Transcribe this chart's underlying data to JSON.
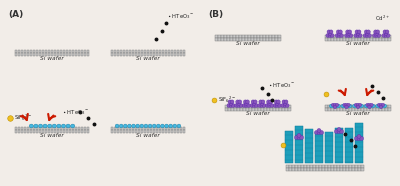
{
  "fig_width": 4.0,
  "fig_height": 1.86,
  "dpi": 100,
  "bg_color": "#f2ede8",
  "label_A": "(A)",
  "label_B": "(B)",
  "si_wafer_label": "Si wafer",
  "gray_color": "#aaaaaa",
  "blue_color": "#45b8e0",
  "purple_color": "#8855bb",
  "teal_color": "#1e9eba",
  "red_color": "#cc1a00",
  "yellow_color": "#f0c020",
  "black_color": "#111111",
  "wafer_cell_color": "#c8c8c8",
  "wafer_edge_color": "#777777"
}
